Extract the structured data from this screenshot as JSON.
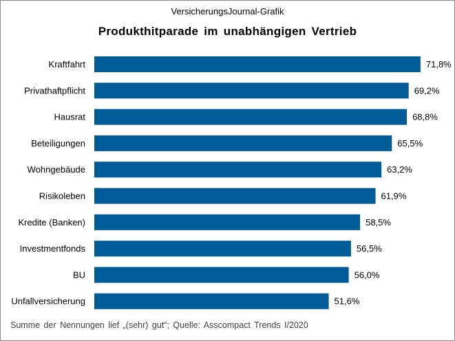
{
  "supertitle": "VersicherungsJournal-Grafik",
  "chart_data": {
    "type": "bar",
    "orientation": "horizontal",
    "title": "Produkthitparade  im unabhängigen  Vertrieb",
    "categories": [
      "Kraftfahrt",
      "Privathaftpflicht",
      "Hausrat",
      "Beteiligungen",
      "Wohngebäude",
      "Risikoleben",
      "Kredite (Banken)",
      "Investmentfonds",
      "BU",
      "Unfallversicherung"
    ],
    "values": [
      71.8,
      69.2,
      68.8,
      65.5,
      63.2,
      61.9,
      58.5,
      56.5,
      56.0,
      51.6
    ],
    "value_labels": [
      "71,8%",
      "69,2%",
      "68,8%",
      "65,5%",
      "63,2%",
      "61,9%",
      "58,5%",
      "56,5%",
      "56,0%",
      "51,6%"
    ],
    "xlim": [
      0,
      80
    ],
    "grid": false,
    "legend": "none",
    "bar_color": "#005b96"
  },
  "footnote": "Summe der Nennungen lief „(sehr) gut“; Quelle: Asscompact Trends I/2020"
}
